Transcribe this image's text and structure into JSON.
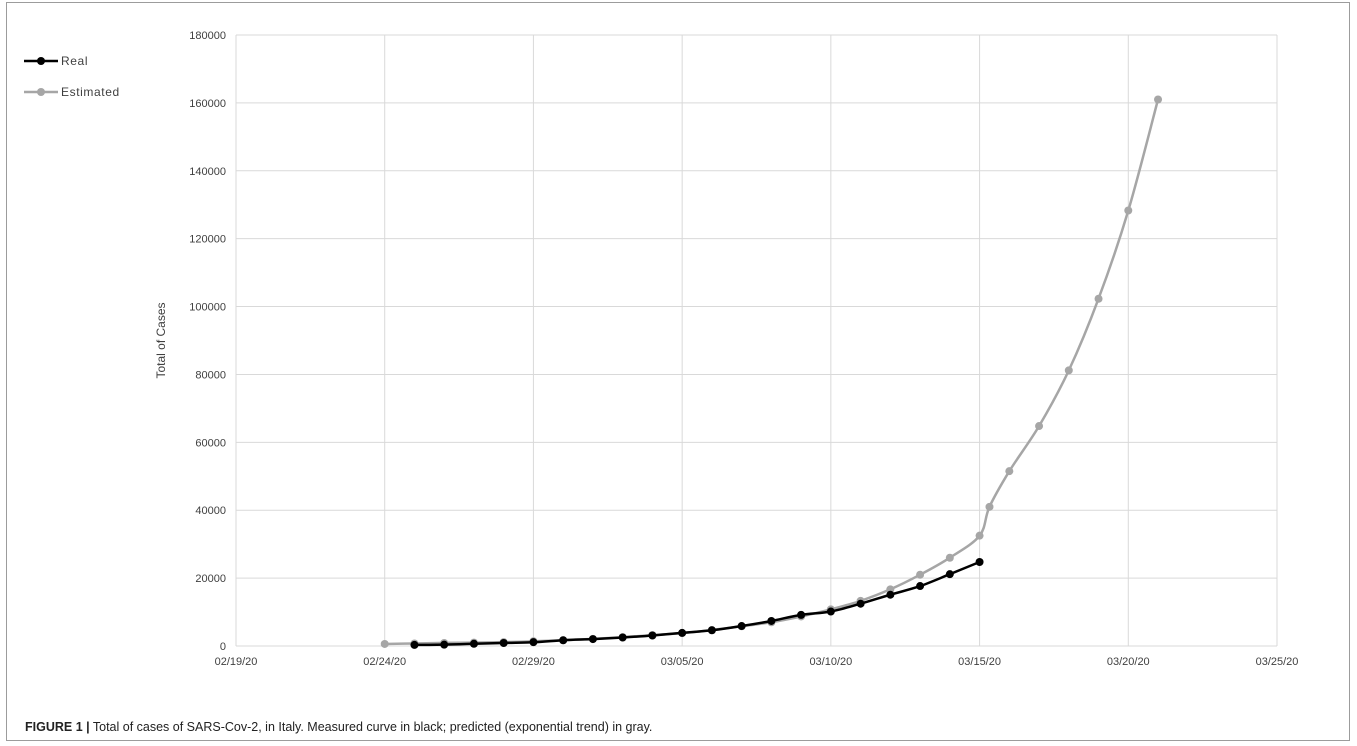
{
  "caption": {
    "label": "FIGURE 1 |",
    "text": "Total of cases of SARS-Cov-2, in Italy. Measured curve in black; predicted (exponential trend) in gray."
  },
  "colors": {
    "real": "#000000",
    "estimated": "#a6a6a6",
    "grid": "#d9d9d9",
    "frame": "#9c9c9c"
  },
  "chart_data": {
    "type": "line",
    "title": "",
    "xlabel": "",
    "ylabel": "Total of Cases",
    "x_ticks": [
      "02/19/20",
      "02/24/20",
      "02/29/20",
      "03/05/20",
      "03/10/20",
      "03/15/20",
      "03/20/20",
      "03/25/20"
    ],
    "y_ticks": [
      "0",
      "20000",
      "40000",
      "60000",
      "80000",
      "100000",
      "120000",
      "140000",
      "160000",
      "180000"
    ],
    "xlim": [
      "2020-02-19",
      "2020-03-25"
    ],
    "ylim": [
      0,
      180000
    ],
    "grid": true,
    "legend_position": "top-left",
    "series": [
      {
        "name": "Real",
        "color": "#000000",
        "points": [
          [
            "2020-02-25",
            322
          ],
          [
            "2020-02-26",
            400
          ],
          [
            "2020-02-27",
            650
          ],
          [
            "2020-02-28",
            888
          ],
          [
            "2020-02-29",
            1128
          ],
          [
            "2020-03-01",
            1694
          ],
          [
            "2020-03-02",
            2036
          ],
          [
            "2020-03-03",
            2502
          ],
          [
            "2020-03-04",
            3089
          ],
          [
            "2020-03-05",
            3858
          ],
          [
            "2020-03-06",
            4636
          ],
          [
            "2020-03-07",
            5883
          ],
          [
            "2020-03-08",
            7375
          ],
          [
            "2020-03-09",
            9172
          ],
          [
            "2020-03-10",
            10149
          ],
          [
            "2020-03-11",
            12462
          ],
          [
            "2020-03-12",
            15113
          ],
          [
            "2020-03-13",
            17660
          ],
          [
            "2020-03-14",
            21157
          ],
          [
            "2020-03-15",
            24747
          ]
        ]
      },
      {
        "name": "Estimated",
        "color": "#a6a6a6",
        "points": [
          [
            "2020-02-24",
            600
          ],
          [
            "2020-02-25",
            750
          ],
          [
            "2020-02-26",
            900
          ],
          [
            "2020-02-27",
            1000
          ],
          [
            "2020-02-28",
            1150
          ],
          [
            "2020-02-29",
            1400
          ],
          [
            "2020-03-01",
            1700
          ],
          [
            "2020-03-02",
            2100
          ],
          [
            "2020-03-03",
            2600
          ],
          [
            "2020-03-04",
            3200
          ],
          [
            "2020-03-05",
            3800
          ],
          [
            "2020-03-06",
            4700
          ],
          [
            "2020-03-07",
            5800
          ],
          [
            "2020-03-08",
            7000
          ],
          [
            "2020-03-09",
            8700
          ],
          [
            "2020-03-10",
            10800
          ],
          [
            "2020-03-11",
            13300
          ],
          [
            "2020-03-12",
            16700
          ],
          [
            "2020-03-13",
            21000
          ],
          [
            "2020-03-14",
            26000
          ],
          [
            "2020-03-15",
            32500
          ],
          [
            "2020-03-15T08:00",
            41000
          ],
          [
            "2020-03-16",
            51500
          ],
          [
            "2020-03-17",
            64800
          ],
          [
            "2020-03-18",
            81200
          ],
          [
            "2020-03-19",
            102300
          ],
          [
            "2020-03-20",
            128300
          ],
          [
            "2020-03-21",
            161000
          ]
        ]
      }
    ]
  }
}
